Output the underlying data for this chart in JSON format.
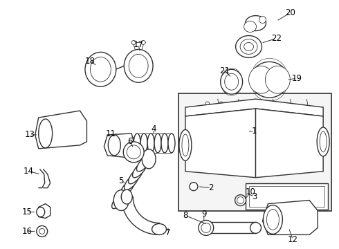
{
  "bg_color": "#ffffff",
  "line_color": "#303030",
  "label_color": "#000000",
  "fig_width": 4.9,
  "fig_height": 3.6,
  "dpi": 100
}
